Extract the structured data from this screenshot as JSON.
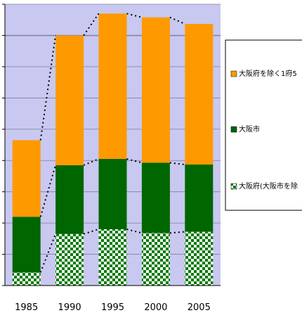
{
  "chart_data": {
    "type": "bar",
    "stacked": true,
    "categories": [
      "1985",
      "1990",
      "1995",
      "2000",
      "2005"
    ],
    "series": [
      {
        "name": "大阪府(大阪市を除",
        "color": "#007a00",
        "pattern": "checker",
        "values": [
          4.2,
          16.5,
          18.0,
          16.8,
          17.2
        ]
      },
      {
        "name": "大阪市",
        "color": "#006600",
        "values": [
          17.8,
          22.0,
          22.5,
          22.5,
          21.5
        ]
      },
      {
        "name": "大阪府を除く1府5",
        "color": "#ff9900",
        "values": [
          24.5,
          41.5,
          46.5,
          46.5,
          45.0
        ]
      }
    ],
    "ylim": [
      0,
      90
    ],
    "grid": true,
    "legend_position": "right",
    "colors": {
      "plot_background": "#c8c8f0",
      "gridline": "#8080a0",
      "axis": "#000000"
    }
  }
}
